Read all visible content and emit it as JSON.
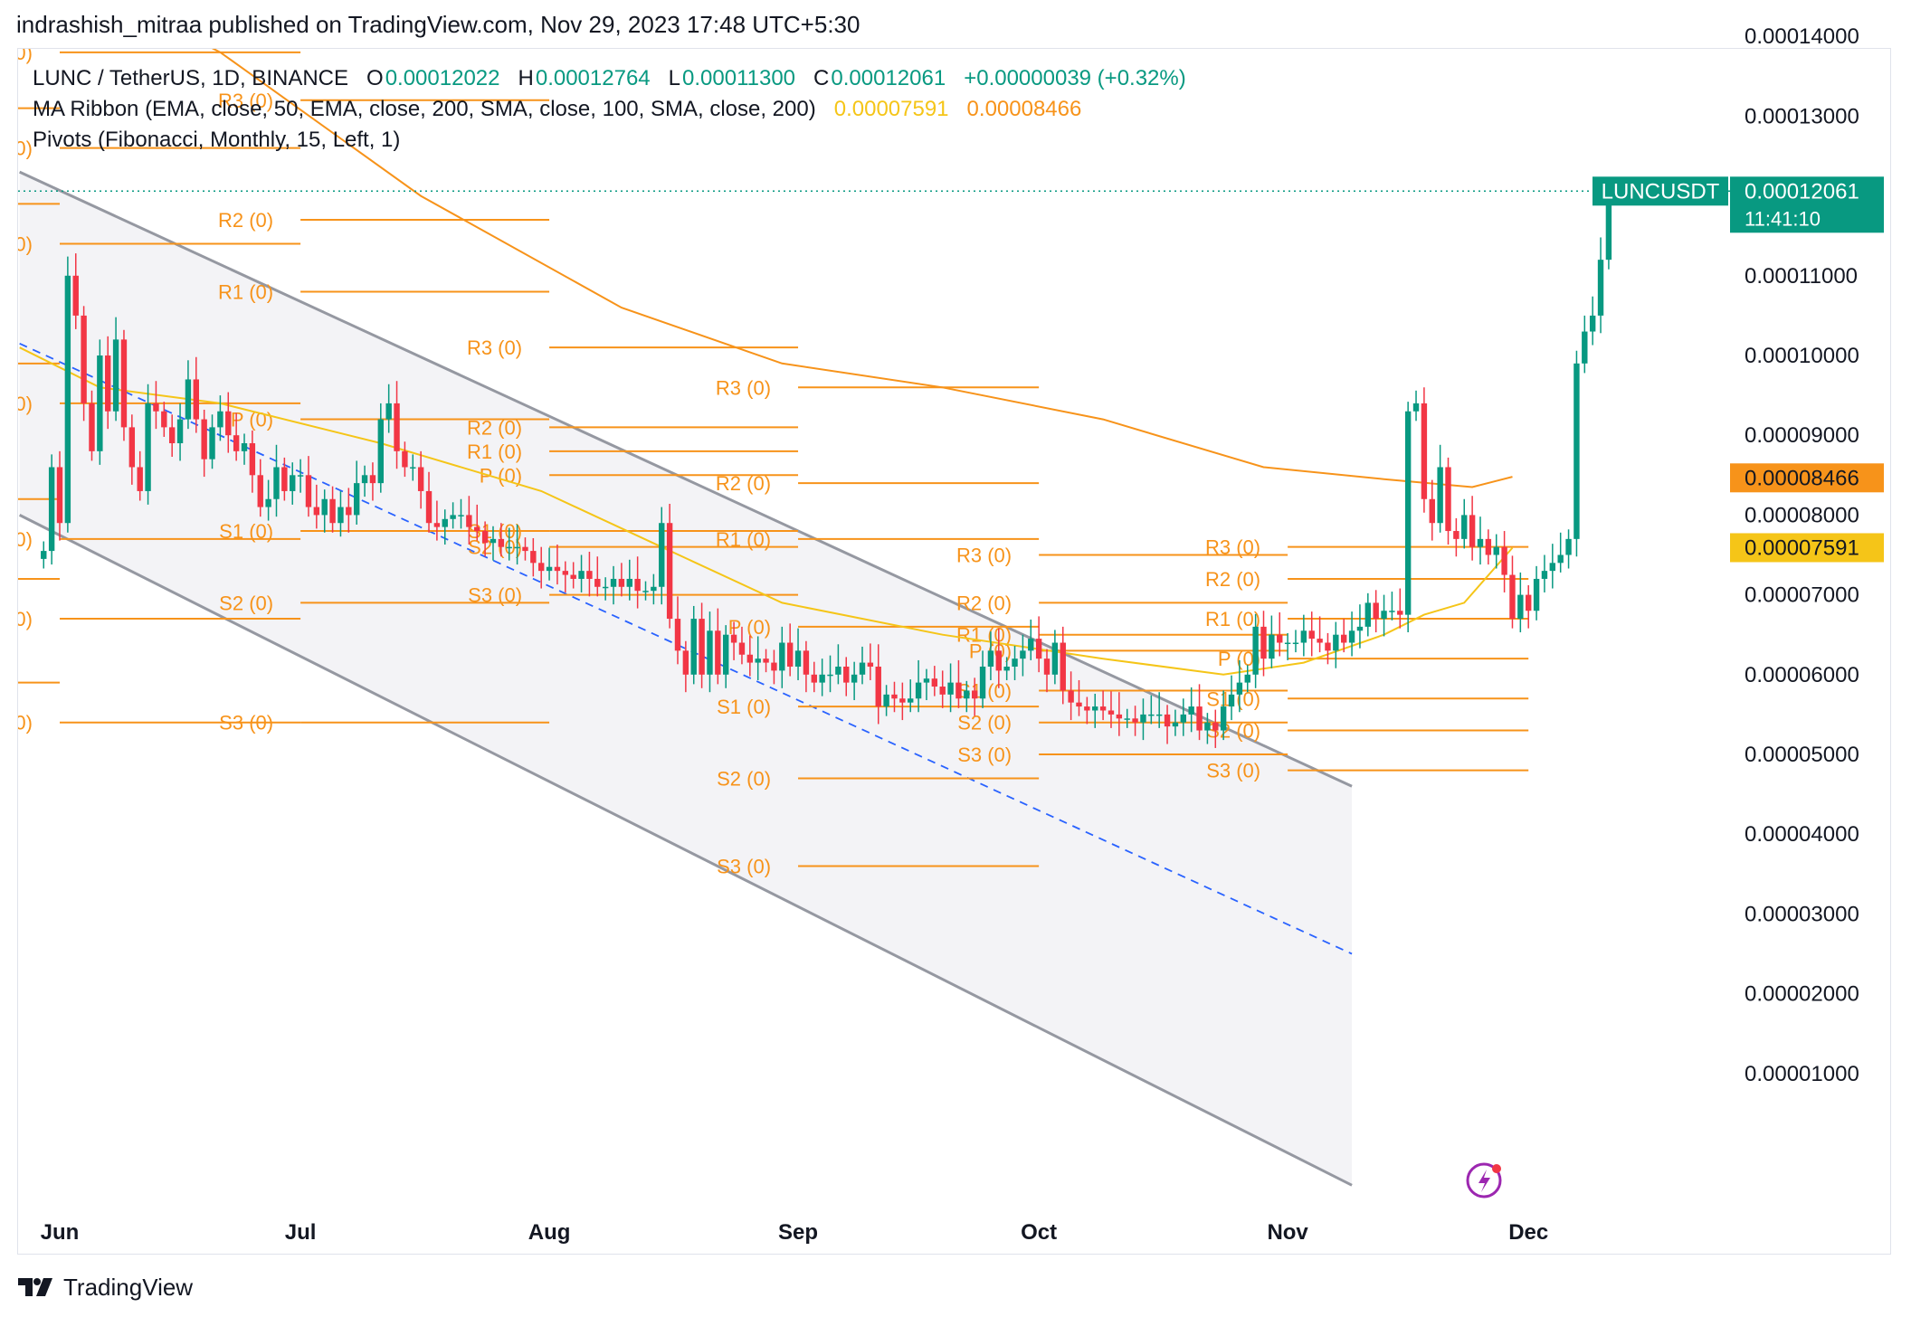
{
  "header": {
    "published_by": "indrashish_mitraa published on TradingView.com, Nov 29, 2023 17:48 UTC+5:30"
  },
  "legend": {
    "symbol": "LUNC / TetherUS, 1D, BINANCE",
    "o_label": "O",
    "o_value": "0.00012022",
    "h_label": "H",
    "h_value": "0.00012764",
    "l_label": "L",
    "l_value": "0.00011300",
    "c_label": "C",
    "c_value": "0.00012061",
    "change": "+0.00000039 (+0.32%)",
    "ma_label": "MA Ribbon (EMA, close, 50, EMA, close, 200, SMA, close, 100, SMA, close, 200)",
    "ma_value_1": "0.00007591",
    "ma_value_2": "0.00008466",
    "pivots_label": "Pivots (Fibonacci, Monthly, 15, Left, 1)"
  },
  "footer": {
    "brand": "TradingView"
  },
  "colors": {
    "up": "#089981",
    "down": "#f23645",
    "pivot": "#f7931a",
    "ma_fast": "#f5c518",
    "ma_slow": "#f7931a",
    "channel": "#9598a1",
    "midline": "#2962ff"
  },
  "chart_data": {
    "type": "candlestick",
    "symbol": "LUNCUSDT",
    "last_price_label": "0.00012061",
    "countdown": "11:41:10",
    "ma_labels": [
      "0.00008466",
      "0.00007591"
    ],
    "y_ticks": [
      "0.00014000",
      "0.00013000",
      "0.00011000",
      "0.00010000",
      "0.00009000",
      "0.00008000",
      "0.00007000",
      "0.00006000",
      "0.00005000",
      "0.00004000",
      "0.00003000",
      "0.00002000",
      "0.00001000"
    ],
    "y_tick_values": [
      14,
      13,
      11,
      10,
      9,
      8,
      7,
      6,
      5,
      4,
      3,
      2,
      1
    ],
    "y_unit_note": "price ×1e-5 USDT",
    "ylim": [
      -0.4,
      15.2
    ],
    "x_ticks": [
      {
        "label": "Jun",
        "day": 0
      },
      {
        "label": "Jul",
        "day": 30
      },
      {
        "label": "Aug",
        "day": 61
      },
      {
        "label": "Sep",
        "day": 92
      },
      {
        "label": "Oct",
        "day": 122
      },
      {
        "label": "Nov",
        "day": 153
      },
      {
        "label": "Dec",
        "day": 183
      }
    ],
    "closes": [
      7.55,
      8.6,
      7.9,
      11.0,
      10.5,
      9.4,
      8.8,
      10.0,
      9.3,
      10.2,
      9.1,
      8.6,
      8.3,
      9.4,
      9.3,
      9.1,
      8.9,
      9.2,
      9.7,
      9.2,
      8.7,
      9.1,
      9.3,
      9.0,
      8.8,
      8.9,
      8.5,
      8.1,
      8.2,
      8.6,
      8.3,
      8.5,
      8.5,
      8.1,
      8.0,
      8.2,
      7.9,
      8.1,
      8.0,
      8.4,
      8.5,
      8.4,
      9.2,
      9.4,
      8.8,
      8.6,
      8.6,
      8.3,
      7.9,
      7.85,
      7.95,
      8.0,
      8.0,
      7.85,
      7.8,
      7.65,
      7.7,
      7.6,
      7.6,
      7.6,
      7.55,
      7.4,
      7.3,
      7.35,
      7.3,
      7.25,
      7.2,
      7.3,
      7.2,
      7.1,
      7.1,
      7.2,
      7.1,
      7.2,
      7.05,
      7.05,
      7.1,
      7.9,
      6.7,
      6.3,
      6.0,
      6.7,
      6.0,
      6.55,
      6.0,
      6.5,
      6.4,
      6.25,
      6.15,
      6.2,
      6.15,
      6.05,
      6.4,
      6.1,
      6.3,
      6.0,
      5.9,
      6.0,
      6.0,
      6.1,
      5.9,
      6.0,
      6.15,
      6.1,
      5.6,
      5.75,
      5.7,
      5.65,
      5.7,
      5.9,
      5.95,
      5.85,
      5.75,
      5.9,
      5.7,
      5.8,
      5.7,
      6.1,
      6.3,
      6.05,
      6.1,
      6.2,
      6.3,
      6.45,
      6.2,
      6.0,
      6.4,
      5.8,
      5.65,
      5.6,
      5.55,
      5.6,
      5.55,
      5.5,
      5.45,
      5.45,
      5.4,
      5.5,
      5.5,
      5.5,
      5.35,
      5.4,
      5.5,
      5.6,
      5.3,
      5.4,
      5.3,
      5.6,
      5.75,
      5.9,
      6.0,
      6.6,
      6.2,
      6.5,
      6.4,
      6.4,
      6.4,
      6.55,
      6.45,
      6.4,
      6.3,
      6.5,
      6.4,
      6.55,
      6.6,
      6.9,
      6.7,
      6.8,
      6.8,
      6.75,
      9.3,
      9.4,
      8.2,
      7.9,
      8.6,
      7.8,
      7.7,
      8.0,
      7.6,
      7.7,
      7.5,
      7.6,
      7.25,
      6.7,
      7.0,
      6.8,
      7.2,
      7.3,
      7.4,
      7.5,
      7.7,
      9.9,
      10.3,
      10.5,
      11.2,
      12.06
    ],
    "pivot_levels": [
      {
        "label": "R3 (0)",
        "values": [
          13.8,
          13.2,
          10.1,
          9.6,
          7.5,
          7.6
        ]
      },
      {
        "label": "R2 (0)",
        "values": [
          12.6,
          11.7,
          9.1,
          8.4,
          6.9,
          7.2
        ]
      },
      {
        "label": "R1 (0)",
        "values": [
          11.4,
          10.8,
          8.8,
          7.7,
          6.5,
          6.7
        ]
      },
      {
        "label": "P (0)",
        "values": [
          9.4,
          9.2,
          8.5,
          6.6,
          6.3,
          6.2
        ]
      },
      {
        "label": "S1 (0)",
        "values": [
          7.7,
          7.8,
          7.8,
          5.6,
          5.8,
          5.7
        ]
      },
      {
        "label": "S2 (0)",
        "values": [
          6.7,
          6.9,
          7.6,
          4.7,
          5.4,
          5.3
        ]
      },
      {
        "label": "S3 (0)",
        "values": [
          5.4,
          5.4,
          7.0,
          3.6,
          5.0,
          4.8
        ]
      }
    ],
    "channel": {
      "upper": {
        "start_day": -5,
        "start": 12.3,
        "end_day": 161,
        "end": 4.6
      },
      "lower": {
        "start_day": -5,
        "start": 8.0,
        "end_day": 161,
        "end": -0.4
      },
      "mid": {
        "start_day": -5,
        "start": 10.15,
        "end_day": 161,
        "end": 2.5
      }
    },
    "ma_slow": [
      [
        -3,
        15.0
      ],
      [
        20,
        13.8
      ],
      [
        45,
        12.0
      ],
      [
        70,
        10.6
      ],
      [
        90,
        9.9
      ],
      [
        110,
        9.6
      ],
      [
        130,
        9.2
      ],
      [
        150,
        8.6
      ],
      [
        165,
        8.45
      ],
      [
        176,
        8.35
      ],
      [
        181,
        8.48
      ]
    ],
    "ma_fast": [
      [
        -5,
        10.1
      ],
      [
        5,
        9.6
      ],
      [
        20,
        9.4
      ],
      [
        40,
        8.9
      ],
      [
        60,
        8.3
      ],
      [
        75,
        7.6
      ],
      [
        90,
        6.9
      ],
      [
        110,
        6.5
      ],
      [
        130,
        6.2
      ],
      [
        145,
        6.0
      ],
      [
        155,
        6.15
      ],
      [
        165,
        6.5
      ],
      [
        170,
        6.75
      ],
      [
        175,
        6.9
      ],
      [
        181,
        7.59
      ]
    ]
  }
}
